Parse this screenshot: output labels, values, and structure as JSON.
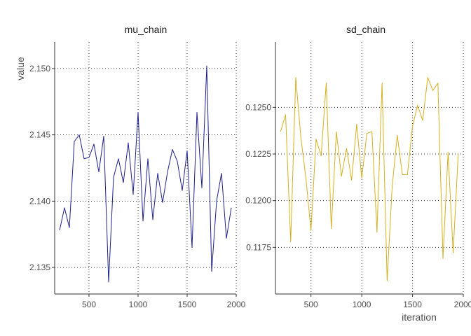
{
  "chart_data": [
    {
      "type": "line",
      "title": "mu_chain",
      "xlabel": "",
      "ylabel": "value",
      "xlim": [
        150,
        2000
      ],
      "ylim": [
        2.133,
        2.152
      ],
      "xticks": [
        500,
        1000,
        1500,
        2000
      ],
      "xtick_labels": [
        "500",
        "1000",
        "1500",
        "2000"
      ],
      "yticks": [
        2.135,
        2.14,
        2.145,
        2.15
      ],
      "ytick_labels": [
        "2.135",
        "2.140",
        "2.145",
        "2.150"
      ],
      "grid": true,
      "series": [
        {
          "color": "#1f1f8f",
          "x": [
            200,
            250,
            300,
            350,
            400,
            450,
            500,
            550,
            600,
            650,
            700,
            750,
            800,
            850,
            900,
            950,
            1000,
            1050,
            1100,
            1150,
            1200,
            1250,
            1300,
            1350,
            1400,
            1450,
            1500,
            1550,
            1600,
            1650,
            1700,
            1750,
            1800,
            1850,
            1900,
            1950
          ],
          "y": [
            2.1378,
            2.1395,
            2.138,
            2.1445,
            2.145,
            2.1432,
            2.1433,
            2.1443,
            2.1422,
            2.1449,
            2.1339,
            2.1418,
            2.1432,
            2.1414,
            2.1444,
            2.1405,
            2.1467,
            2.1385,
            2.1432,
            2.1386,
            2.1421,
            2.1399,
            2.1422,
            2.1439,
            2.143,
            2.1408,
            2.1438,
            2.1365,
            2.1467,
            2.141,
            2.1502,
            2.1347,
            2.14,
            2.1421,
            2.1372,
            2.1395
          ]
        }
      ]
    },
    {
      "type": "line",
      "title": "sd_chain",
      "xlabel": "iteration",
      "ylabel": "",
      "xlim": [
        150,
        2000
      ],
      "ylim": [
        0.115,
        0.1285
      ],
      "xticks": [
        500,
        1000,
        1500,
        2000
      ],
      "xtick_labels": [
        "500",
        "1000",
        "1500",
        "2000"
      ],
      "yticks": [
        0.1175,
        0.12,
        0.1225,
        0.125
      ],
      "ytick_labels": [
        "0.1175",
        "0.1200",
        "0.1225",
        "0.1250"
      ],
      "grid": true,
      "series": [
        {
          "color": "#d4b020",
          "x": [
            200,
            250,
            300,
            350,
            400,
            450,
            500,
            550,
            600,
            650,
            700,
            750,
            800,
            850,
            900,
            950,
            1000,
            1050,
            1100,
            1150,
            1200,
            1250,
            1300,
            1350,
            1400,
            1450,
            1500,
            1550,
            1600,
            1650,
            1700,
            1750,
            1800,
            1850,
            1900,
            1950
          ],
          "y": [
            0.1237,
            0.1246,
            0.1178,
            0.1266,
            0.1234,
            0.1212,
            0.1184,
            0.1233,
            0.1224,
            0.1263,
            0.1185,
            0.1237,
            0.1213,
            0.1228,
            0.1211,
            0.1241,
            0.1212,
            0.1236,
            0.1237,
            0.1183,
            0.1263,
            0.1157,
            0.1208,
            0.1235,
            0.1214,
            0.1214,
            0.124,
            0.1251,
            0.1243,
            0.1266,
            0.1259,
            0.1263,
            0.1169,
            0.1226,
            0.1172,
            0.1225
          ]
        }
      ]
    }
  ]
}
